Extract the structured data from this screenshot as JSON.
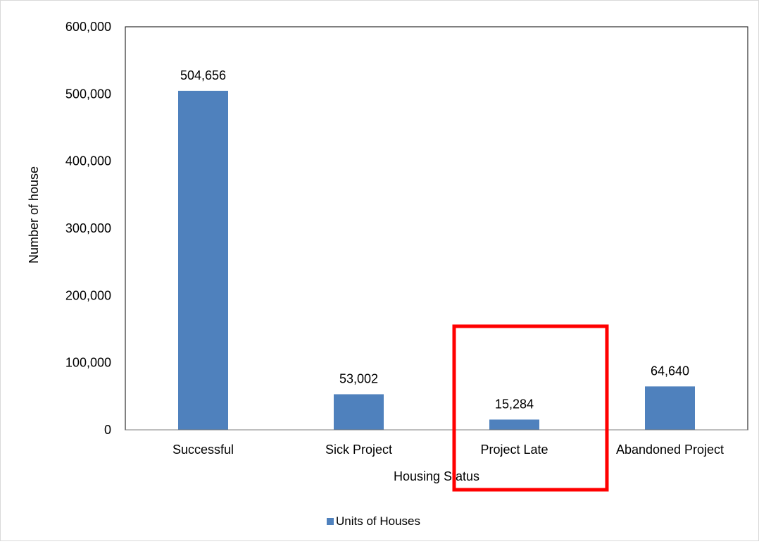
{
  "chart_data": {
    "type": "bar",
    "title": "",
    "categories": [
      "Successful",
      "Sick Project",
      "Project Late",
      "Abandoned Project"
    ],
    "series": [
      {
        "name": "Units of Houses",
        "values": [
          504656,
          53002,
          15284,
          64640
        ],
        "data_labels": [
          "504,656",
          "53,002",
          "15,284",
          "64,640"
        ]
      }
    ],
    "xlabel": "Housing Status",
    "ylabel": "Number of house",
    "ylim": [
      0,
      600000
    ],
    "yticks": [
      0,
      100000,
      200000,
      300000,
      400000,
      500000,
      600000
    ],
    "ytick_labels": [
      "0",
      "100,000",
      "200,000",
      "300,000",
      "400,000",
      "500,000",
      "600,000"
    ],
    "grid": false,
    "legend_position": "bottom",
    "highlight": {
      "category": "Project Late",
      "shape": "rectangle",
      "color": "#ff0000"
    },
    "colors": {
      "bar": "#4f81bd",
      "axis": "#000000",
      "frame": "#d9d9d9"
    }
  }
}
